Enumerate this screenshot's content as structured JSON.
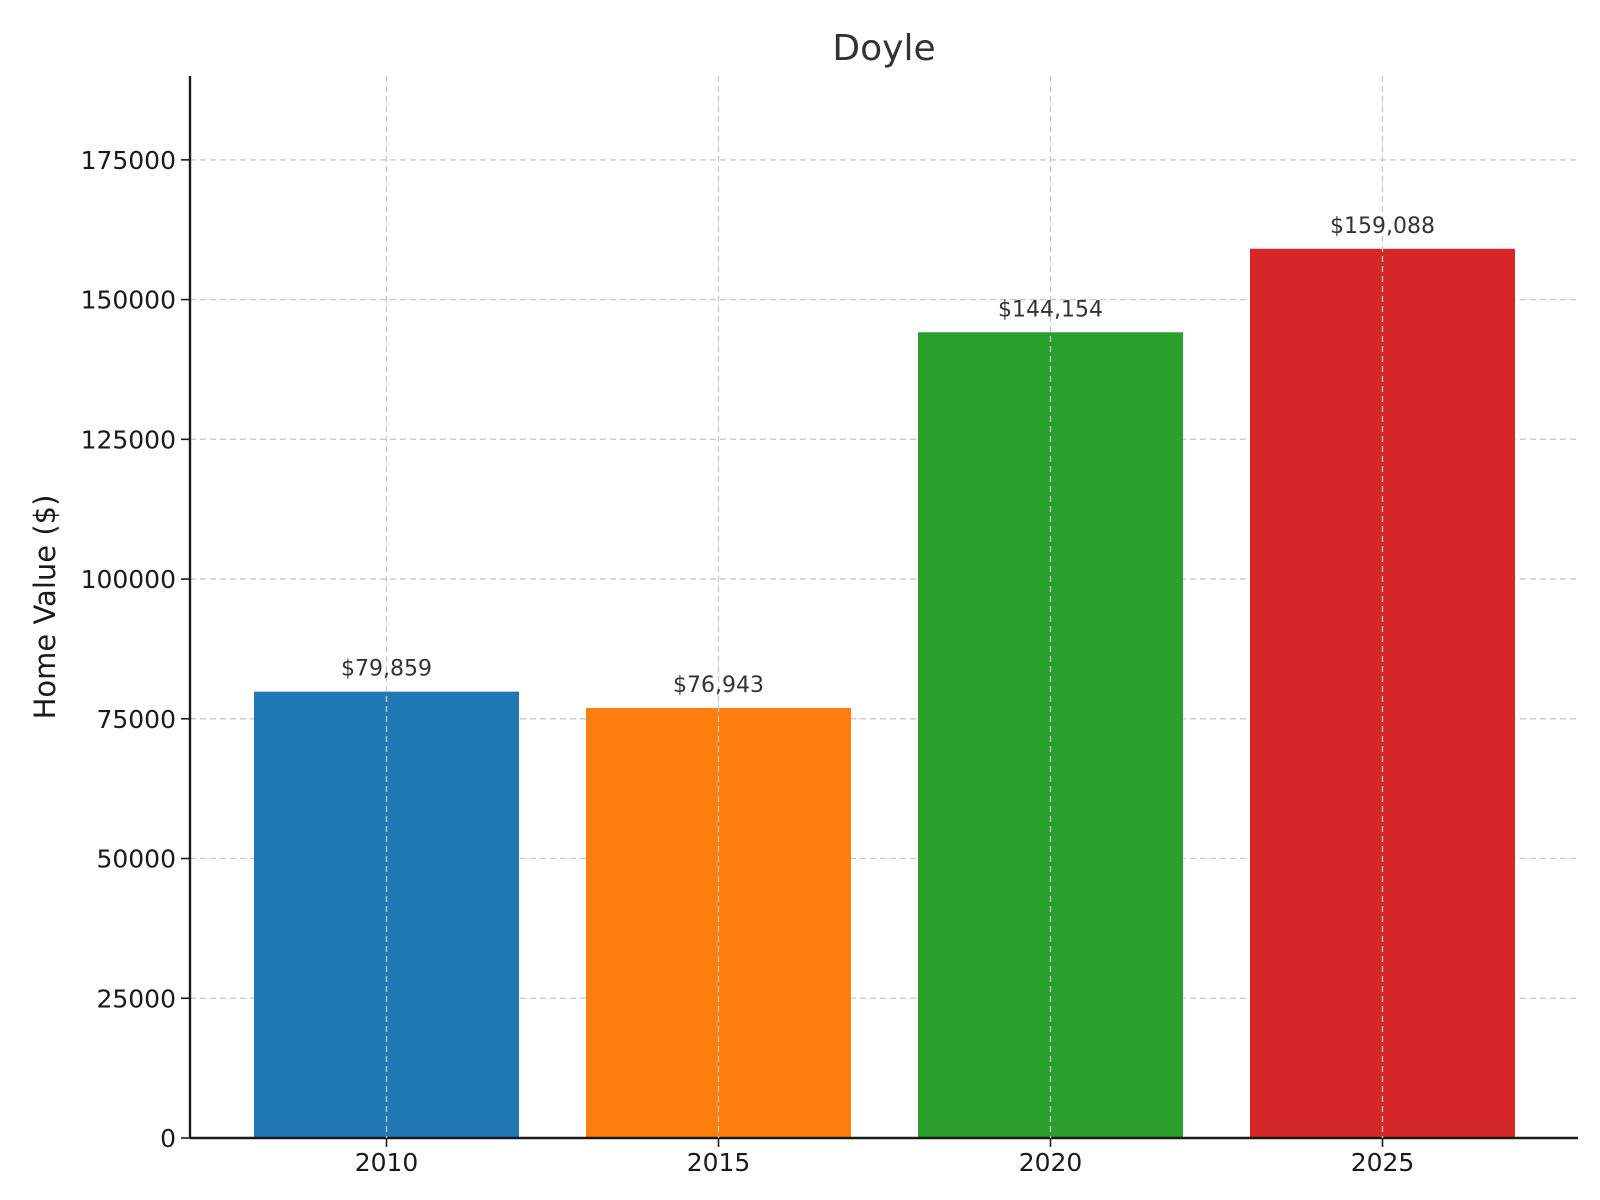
{
  "chart_data": {
    "type": "bar",
    "title": "Doyle",
    "xlabel": "",
    "ylabel": "Home Value ($)",
    "categories": [
      "2010",
      "2015",
      "2020",
      "2025"
    ],
    "values": [
      79859,
      76943,
      144154,
      159088
    ],
    "value_labels": [
      "$79,859",
      "$76,943",
      "$144,154",
      "$159,088"
    ],
    "colors": [
      "#1f77b4",
      "#ff7f0e",
      "#2ca02c",
      "#d62728"
    ],
    "ylim": [
      0,
      190000
    ],
    "yticks": [
      0,
      25000,
      50000,
      75000,
      100000,
      125000,
      150000,
      175000
    ],
    "ytick_labels": [
      "0",
      "25000",
      "50000",
      "75000",
      "100000",
      "125000",
      "150000",
      "175000"
    ],
    "grid": true,
    "grid_style": "dashed"
  }
}
